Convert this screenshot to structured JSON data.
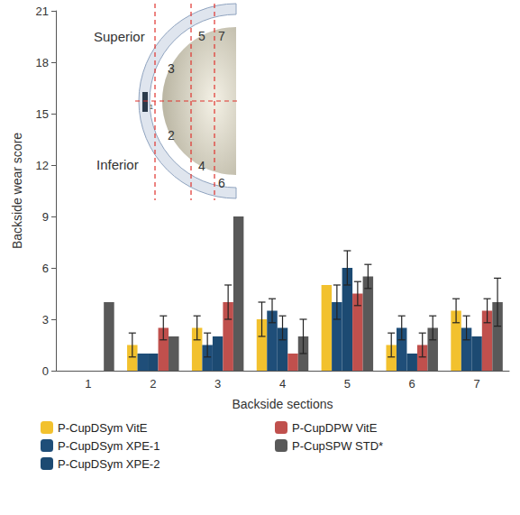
{
  "chart_data": {
    "type": "bar",
    "x_label": "Backside sections",
    "y_label": "Backside wear score",
    "categories": [
      "1",
      "2",
      "3",
      "4",
      "5",
      "6",
      "7"
    ],
    "ylim": [
      0,
      21
    ],
    "yticks": [
      0,
      3,
      6,
      9,
      12,
      15,
      18,
      21
    ],
    "grid": false,
    "legend": "bottom",
    "series": [
      {
        "name": "P-CupDSym VitE",
        "color": "#f2c12e",
        "values": [
          0,
          1.5,
          2.5,
          3,
          5,
          1.5,
          3.5
        ],
        "errors": [
          null,
          0.7,
          0.7,
          1,
          null,
          0.7,
          0.7
        ]
      },
      {
        "name": "P-CupDSym XPE-1",
        "color": "#1f4e79",
        "values": [
          0,
          1,
          1.5,
          3.5,
          4,
          2.5,
          2.5
        ],
        "errors": [
          null,
          null,
          0.7,
          0.7,
          1,
          0.7,
          0.7
        ]
      },
      {
        "name": "P-CupDSym XPE-2",
        "color": "#1c4a72",
        "values": [
          0,
          1,
          2,
          2.5,
          6,
          1,
          2
        ],
        "errors": [
          null,
          null,
          null,
          0.7,
          1,
          null,
          null
        ]
      },
      {
        "name": "P-CupDPW VitE",
        "color": "#c0504d",
        "values": [
          0,
          2.5,
          4,
          1,
          4.5,
          1.5,
          3.5
        ],
        "errors": [
          null,
          0.7,
          1,
          null,
          0.7,
          0.7,
          0.7
        ]
      },
      {
        "name": "P-CupSPW STD*",
        "color": "#595959",
        "values": [
          4,
          2,
          9,
          2,
          5.5,
          2.5,
          4
        ],
        "errors": [
          null,
          null,
          null,
          1,
          0.7,
          0.7,
          1.4
        ]
      }
    ],
    "annotations": [
      "Superior",
      "Inferior",
      "1",
      "2",
      "3",
      "4",
      "5",
      "6",
      "7"
    ]
  }
}
